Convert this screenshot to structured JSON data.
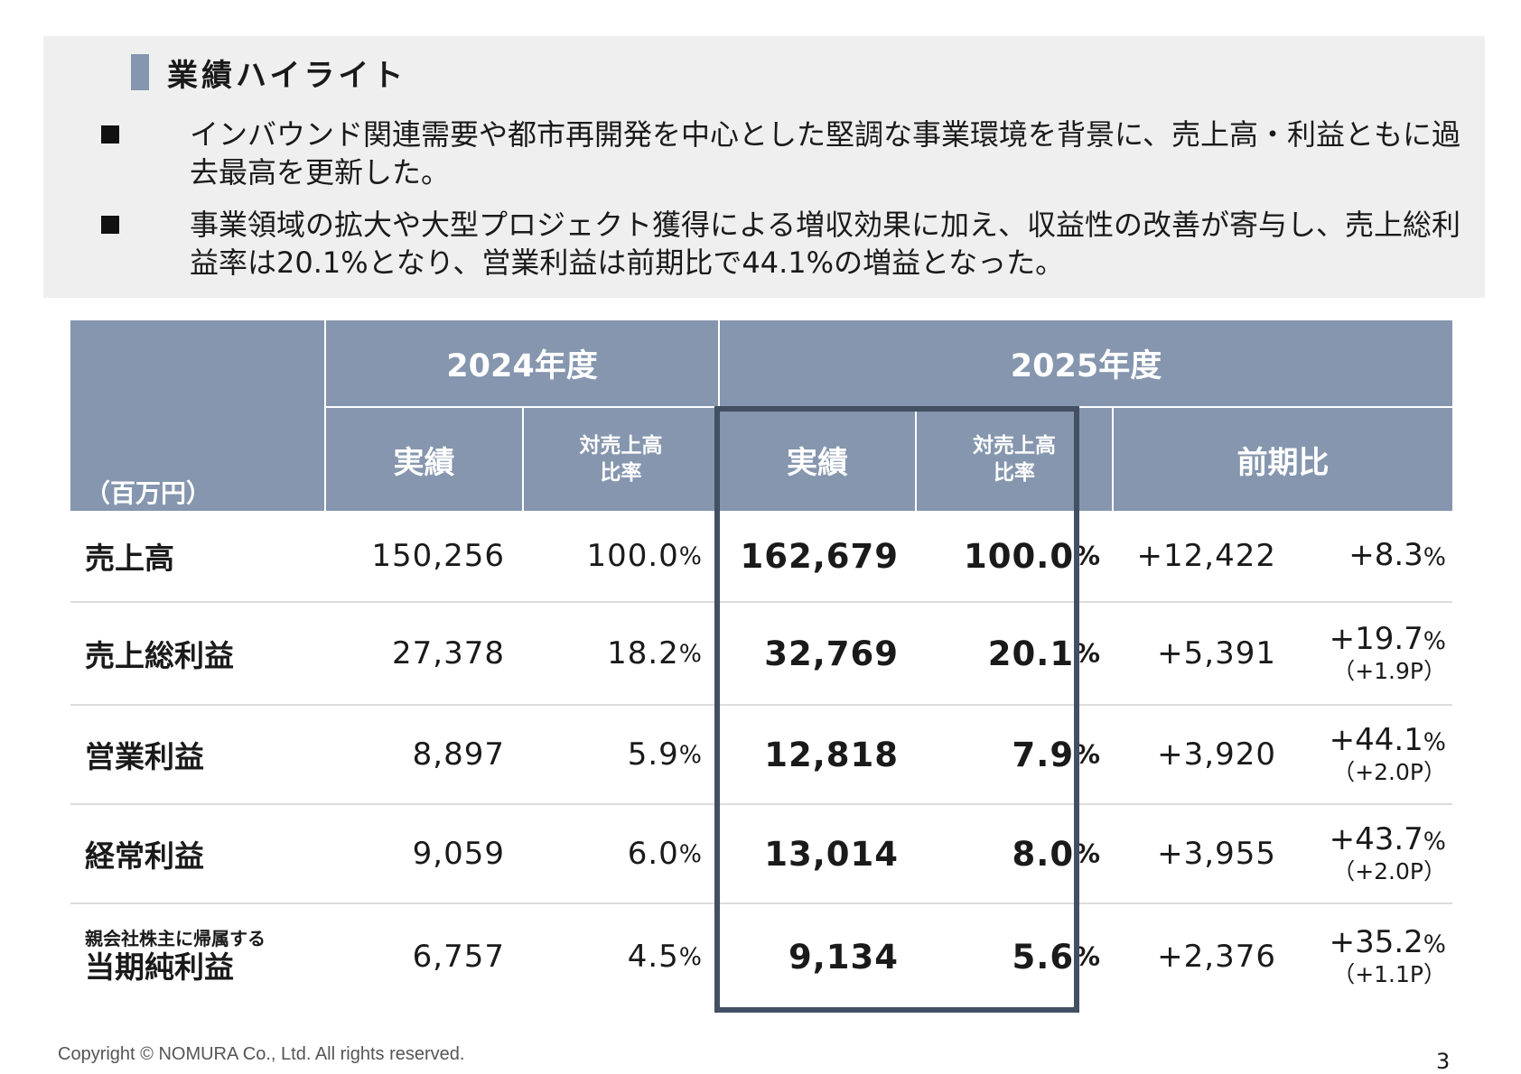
{
  "section": {
    "title": "業績ハイライト",
    "bullets": [
      "インバウンド関連需要や都市再開発を中心とした堅調な事業環境を背景に、売上高・利益ともに過去最高を更新した。",
      "事業領域の拡大や大型プロジェクト獲得による増収効果に加え、収益性の改善が寄与し、売上総利益率は20.1%となり、営業利益は前期比で44.1%の増益となった。"
    ]
  },
  "table": {
    "unit": "（百万円）",
    "years": {
      "prev": "2024年度",
      "curr": "2025年度"
    },
    "subheaders": {
      "actual": "実績",
      "ratio_line1": "対売上高",
      "ratio_line2": "比率",
      "yoy": "前期比"
    },
    "rows": [
      {
        "label_small": "",
        "label": "売上高",
        "prev": "150,256",
        "prev_ratio": "100.0",
        "curr": "162,679",
        "curr_ratio": "100.0",
        "diff": "+12,422",
        "diff_pct": "+8.3",
        "diff_pt": ""
      },
      {
        "label_small": "",
        "label": "売上総利益",
        "prev": "27,378",
        "prev_ratio": "18.2",
        "curr": "32,769",
        "curr_ratio": "20.1",
        "diff": "+5,391",
        "diff_pct": "+19.7",
        "diff_pt": "（+1.9P）"
      },
      {
        "label_small": "",
        "label": "営業利益",
        "prev": "8,897",
        "prev_ratio": "5.9",
        "curr": "12,818",
        "curr_ratio": "7.9",
        "diff": "+3,920",
        "diff_pct": "+44.1",
        "diff_pt": "（+2.0P）"
      },
      {
        "label_small": "",
        "label": "経常利益",
        "prev": "9,059",
        "prev_ratio": "6.0",
        "curr": "13,014",
        "curr_ratio": "8.0",
        "diff": "+3,955",
        "diff_pct": "+43.7",
        "diff_pt": "（+2.0P）"
      },
      {
        "label_small": "親会社株主に帰属する",
        "label": "当期純利益",
        "prev": "6,757",
        "prev_ratio": "4.5",
        "curr": "9,134",
        "curr_ratio": "5.6",
        "diff": "+2,376",
        "diff_pct": "+35.2",
        "diff_pt": "（+1.1P）"
      }
    ],
    "percent_sign": "%"
  },
  "footer": {
    "copyright": "Copyright © NOMURA Co., Ltd. All rights reserved.",
    "page": "3"
  },
  "colors": {
    "header_bg": "#8596ae",
    "highlight_frame": "#434f63",
    "panel_bg": "#efefef"
  }
}
